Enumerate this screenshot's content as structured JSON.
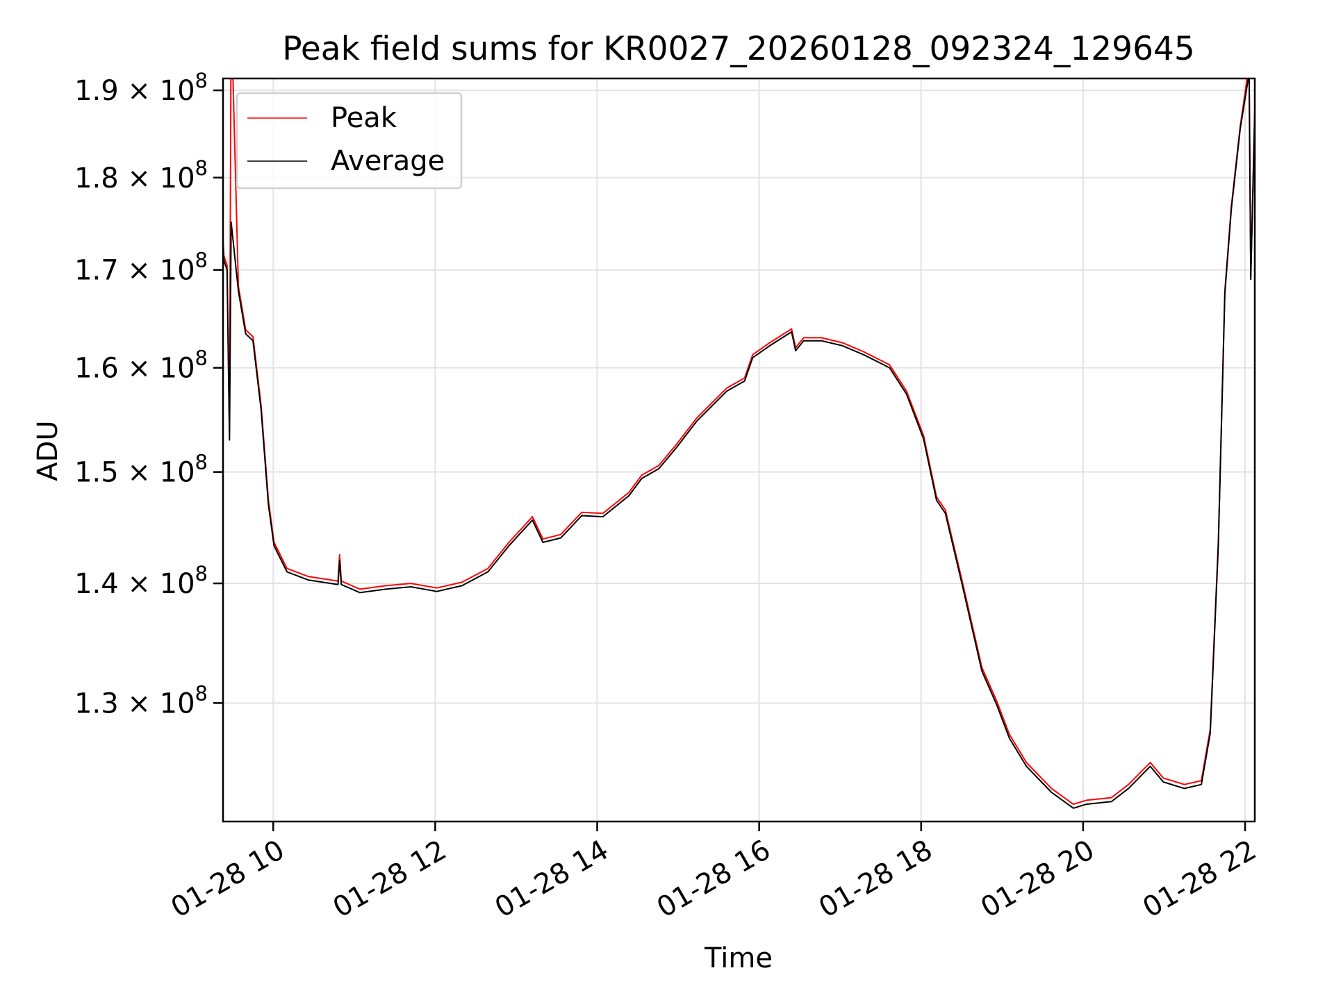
{
  "chart_data": {
    "type": "line",
    "title": "Peak field sums for KR0027_20260128_092324_129645",
    "xlabel": "Time",
    "ylabel": "ADU",
    "yscale": "log",
    "xlim_hours": [
      9.38,
      22.12
    ],
    "ylim": [
      120800000.0,
      191400000.0
    ],
    "grid": true,
    "legend_position": "top-left",
    "x_ticks": [
      {
        "hour": 10,
        "label": "01-28 10"
      },
      {
        "hour": 12,
        "label": "01-28 12"
      },
      {
        "hour": 14,
        "label": "01-28 14"
      },
      {
        "hour": 16,
        "label": "01-28 16"
      },
      {
        "hour": 18,
        "label": "01-28 18"
      },
      {
        "hour": 20,
        "label": "01-28 20"
      },
      {
        "hour": 22,
        "label": "01-28 22"
      }
    ],
    "y_ticks": [
      {
        "value": 130000000.0,
        "mantissa": "1.3",
        "base": "10",
        "exp": "8"
      },
      {
        "value": 140000000.0,
        "mantissa": "1.4",
        "base": "10",
        "exp": "8"
      },
      {
        "value": 150000000.0,
        "mantissa": "1.5",
        "base": "10",
        "exp": "8"
      },
      {
        "value": 160000000.0,
        "mantissa": "1.6",
        "base": "10",
        "exp": "8"
      },
      {
        "value": 170000000.0,
        "mantissa": "1.7",
        "base": "10",
        "exp": "8"
      },
      {
        "value": 180000000.0,
        "mantissa": "1.8",
        "base": "10",
        "exp": "8"
      },
      {
        "value": 190000000.0,
        "mantissa": "1.9",
        "base": "10",
        "exp": "8"
      }
    ],
    "times_hours": [
      9.38,
      9.39,
      9.43,
      9.46,
      9.48,
      9.57,
      9.66,
      9.75,
      9.85,
      9.94,
      10.01,
      10.17,
      10.43,
      10.8,
      10.82,
      10.84,
      11.07,
      11.39,
      11.7,
      12.02,
      12.33,
      12.65,
      12.91,
      13.2,
      13.33,
      13.55,
      13.81,
      14.07,
      14.39,
      14.55,
      14.76,
      14.97,
      15.23,
      15.6,
      15.82,
      15.92,
      16.13,
      16.4,
      16.45,
      16.55,
      16.77,
      17.03,
      17.29,
      17.61,
      17.82,
      18.03,
      18.19,
      18.3,
      18.51,
      18.75,
      18.93,
      19.09,
      19.3,
      19.61,
      19.88,
      20.04,
      20.35,
      20.56,
      20.83,
      20.99,
      21.25,
      21.46,
      21.57,
      21.67,
      21.75,
      21.83,
      21.94,
      22.05,
      22.07,
      22.12
    ],
    "series": [
      {
        "name": "Peak",
        "color": "#ff0000",
        "values_e8": [
          1.732,
          1.715,
          1.705,
          1.535,
          2.0,
          1.683,
          1.638,
          1.631,
          1.563,
          1.474,
          1.436,
          1.413,
          1.406,
          1.402,
          1.425,
          1.402,
          1.395,
          1.398,
          1.4,
          1.396,
          1.401,
          1.413,
          1.436,
          1.459,
          1.439,
          1.443,
          1.463,
          1.462,
          1.481,
          1.497,
          1.506,
          1.525,
          1.551,
          1.58,
          1.59,
          1.613,
          1.625,
          1.639,
          1.62,
          1.63,
          1.63,
          1.625,
          1.616,
          1.603,
          1.577,
          1.534,
          1.477,
          1.465,
          1.401,
          1.329,
          1.302,
          1.275,
          1.253,
          1.233,
          1.221,
          1.224,
          1.226,
          1.236,
          1.253,
          1.241,
          1.236,
          1.239,
          1.279,
          1.436,
          1.678,
          1.768,
          1.858,
          1.93,
          1.693,
          1.879
        ]
      },
      {
        "name": "Average",
        "color": "#000000",
        "values_e8": [
          1.728,
          1.71,
          1.7,
          1.53,
          1.751,
          1.678,
          1.634,
          1.627,
          1.559,
          1.47,
          1.433,
          1.41,
          1.403,
          1.399,
          1.42,
          1.399,
          1.392,
          1.395,
          1.397,
          1.393,
          1.398,
          1.41,
          1.433,
          1.456,
          1.436,
          1.44,
          1.46,
          1.459,
          1.478,
          1.494,
          1.503,
          1.522,
          1.548,
          1.577,
          1.587,
          1.61,
          1.622,
          1.636,
          1.617,
          1.627,
          1.627,
          1.622,
          1.613,
          1.6,
          1.574,
          1.531,
          1.474,
          1.462,
          1.398,
          1.326,
          1.299,
          1.272,
          1.25,
          1.23,
          1.218,
          1.221,
          1.223,
          1.233,
          1.25,
          1.238,
          1.233,
          1.236,
          1.276,
          1.433,
          1.675,
          1.765,
          1.855,
          1.92,
          1.69,
          1.876
        ]
      }
    ]
  }
}
